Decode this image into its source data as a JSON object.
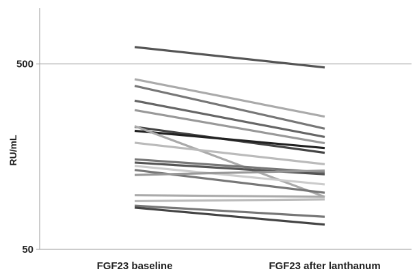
{
  "chart_data": {
    "type": "line",
    "scale": "log",
    "ylabel": "RU/mL",
    "categories": [
      "FGF23 baseline",
      "FGF23 after lanthanum"
    ],
    "yticks": [
      {
        "value": 500,
        "label": "500"
      },
      {
        "value": 50,
        "label": "50"
      }
    ],
    "ylim": [
      50,
      1000
    ],
    "grid": true,
    "series": [
      {
        "values": [
          617,
          479
        ],
        "color": "#555555"
      },
      {
        "values": [
          414,
          260
        ],
        "color": "#aaaaaa"
      },
      {
        "values": [
          381,
          224
        ],
        "color": "#777777"
      },
      {
        "values": [
          317,
          202
        ],
        "color": "#666666"
      },
      {
        "values": [
          282,
          187
        ],
        "color": "#999999"
      },
      {
        "values": [
          229,
          166
        ],
        "color": "#444444"
      },
      {
        "values": [
          218,
          176
        ],
        "color": "#222222"
      },
      {
        "values": [
          231,
          96
        ],
        "color": "#aaaaaa"
      },
      {
        "values": [
          188,
          144
        ],
        "color": "#bbbbbb"
      },
      {
        "values": [
          153,
          130
        ],
        "color": "#777777"
      },
      {
        "values": [
          147,
          127
        ],
        "color": "#555555"
      },
      {
        "values": [
          141,
          112
        ],
        "color": "#cccccc"
      },
      {
        "values": [
          134,
          101
        ],
        "color": "#777777"
      },
      {
        "values": [
          126,
          133
        ],
        "color": "#999999"
      },
      {
        "values": [
          98,
          96
        ],
        "color": "#aaaaaa"
      },
      {
        "values": [
          91,
          93
        ],
        "color": "#bbbbbb"
      },
      {
        "values": [
          86,
          75
        ],
        "color": "#777777"
      },
      {
        "values": [
          84,
          68
        ],
        "color": "#444444"
      }
    ]
  }
}
